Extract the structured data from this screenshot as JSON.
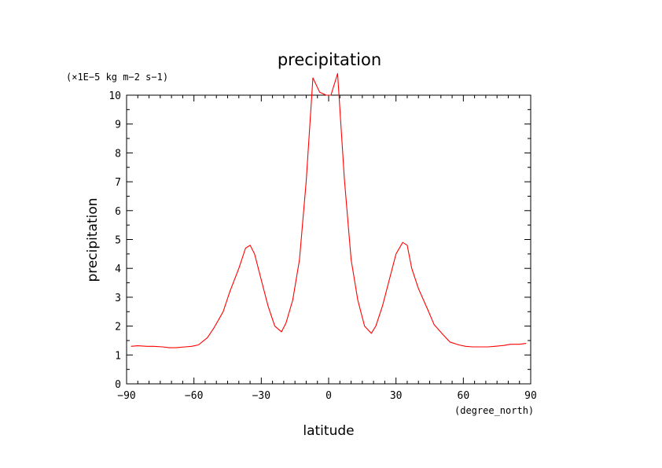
{
  "chart_data": {
    "type": "line",
    "title": "precipitation",
    "xlabel": "latitude",
    "ylabel": "precipitation",
    "x_units": "(degree_north)",
    "y_units": "(×1E−5 kg m−2 s−1)",
    "xlim": [
      -90,
      90
    ],
    "ylim": [
      0,
      10
    ],
    "x_ticks": [
      -90,
      -60,
      -30,
      0,
      30,
      60,
      90
    ],
    "x_tick_labels": [
      "−90",
      "−60",
      "−30",
      "0",
      "30",
      "60",
      "90"
    ],
    "y_ticks": [
      0,
      1,
      2,
      3,
      4,
      5,
      6,
      7,
      8,
      9,
      10
    ],
    "y_tick_labels": [
      "0",
      "1",
      "2",
      "3",
      "4",
      "5",
      "6",
      "7",
      "8",
      "9",
      "10"
    ],
    "grid": false,
    "series": [
      {
        "color": "#ff0000",
        "x": [
          -88,
          -85,
          -81,
          -78,
          -74,
          -71,
          -68,
          -64,
          -61,
          -58,
          -54,
          -51,
          -47,
          -44,
          -40,
          -37,
          -35,
          -33,
          -30,
          -27,
          -24,
          -21,
          -19,
          -16,
          -13,
          -10,
          -7,
          -4,
          -1,
          1,
          4,
          7,
          10,
          13,
          16,
          19,
          21,
          24,
          27,
          30,
          33,
          35,
          37,
          40,
          44,
          47,
          51,
          54,
          58,
          61,
          64,
          68,
          71,
          74,
          78,
          81,
          85,
          88
        ],
        "y": [
          1.3,
          1.32,
          1.3,
          1.3,
          1.28,
          1.25,
          1.25,
          1.28,
          1.3,
          1.35,
          1.6,
          1.95,
          2.5,
          3.2,
          4.0,
          4.7,
          4.8,
          4.5,
          3.6,
          2.7,
          2.0,
          1.8,
          2.1,
          2.9,
          4.3,
          7.0,
          10.6,
          10.1,
          10.0,
          10.0,
          10.75,
          7.1,
          4.3,
          2.9,
          2.0,
          1.75,
          2.0,
          2.7,
          3.6,
          4.5,
          4.9,
          4.8,
          4.0,
          3.3,
          2.6,
          2.05,
          1.7,
          1.45,
          1.35,
          1.3,
          1.28,
          1.28,
          1.28,
          1.3,
          1.33,
          1.37,
          1.37,
          1.4
        ]
      }
    ]
  }
}
